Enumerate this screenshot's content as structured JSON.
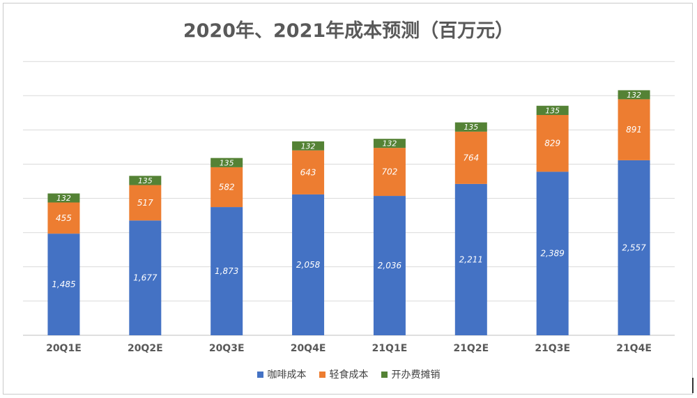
{
  "chart_data": {
    "type": "bar",
    "stacked": true,
    "title": "2020年、2021年成本预测（百万元）",
    "categories": [
      "20Q1E",
      "20Q2E",
      "20Q3E",
      "20Q4E",
      "21Q1E",
      "21Q2E",
      "21Q3E",
      "21Q4E"
    ],
    "series": [
      {
        "name": "咖啡成本",
        "color": "#4472C4",
        "values": [
          1485,
          1677,
          1873,
          2058,
          2036,
          2211,
          2389,
          2557
        ]
      },
      {
        "name": "轻食成本",
        "color": "#ED7D31",
        "values": [
          455,
          517,
          582,
          643,
          702,
          764,
          829,
          891
        ]
      },
      {
        "name": "开办费摊销",
        "color": "#548235",
        "values": [
          132,
          135,
          135,
          132,
          132,
          135,
          135,
          132
        ]
      }
    ],
    "data_labels": [
      [
        "1,485",
        "1,677",
        "1,873",
        "2,058",
        "2,036",
        "2,211",
        "2,389",
        "2,557"
      ],
      [
        "455",
        "517",
        "582",
        "643",
        "702",
        "764",
        "829",
        "891"
      ],
      [
        "132",
        "135",
        "135",
        "132",
        "132",
        "135",
        "135",
        "132"
      ]
    ],
    "ylim": [
      0,
      4000
    ],
    "grid": true,
    "legend_position": "bottom"
  }
}
